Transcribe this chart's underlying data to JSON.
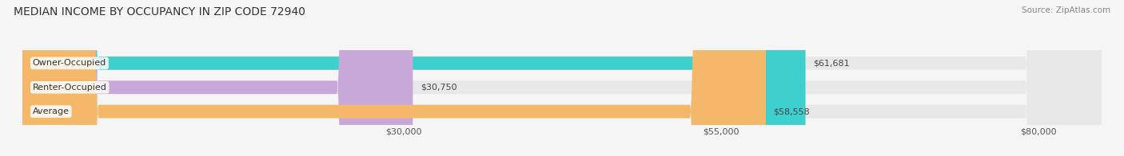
{
  "title": "MEDIAN INCOME BY OCCUPANCY IN ZIP CODE 72940",
  "source": "Source: ZipAtlas.com",
  "categories": [
    "Owner-Occupied",
    "Renter-Occupied",
    "Average"
  ],
  "values": [
    61681,
    30750,
    58558
  ],
  "labels": [
    "$61,681",
    "$30,750",
    "$58,558"
  ],
  "bar_colors": [
    "#3ecfcf",
    "#c8a8d8",
    "#f5b86a"
  ],
  "bar_bg_color": "#e8e8e8",
  "x_ticks": [
    30000,
    55000,
    80000
  ],
  "x_tick_labels": [
    "$30,000",
    "$55,000",
    "$80,000"
  ],
  "x_min": 0,
  "x_max": 85000,
  "title_fontsize": 10,
  "source_fontsize": 7.5,
  "label_fontsize": 8,
  "tick_fontsize": 8,
  "background_color": "#f5f5f5"
}
